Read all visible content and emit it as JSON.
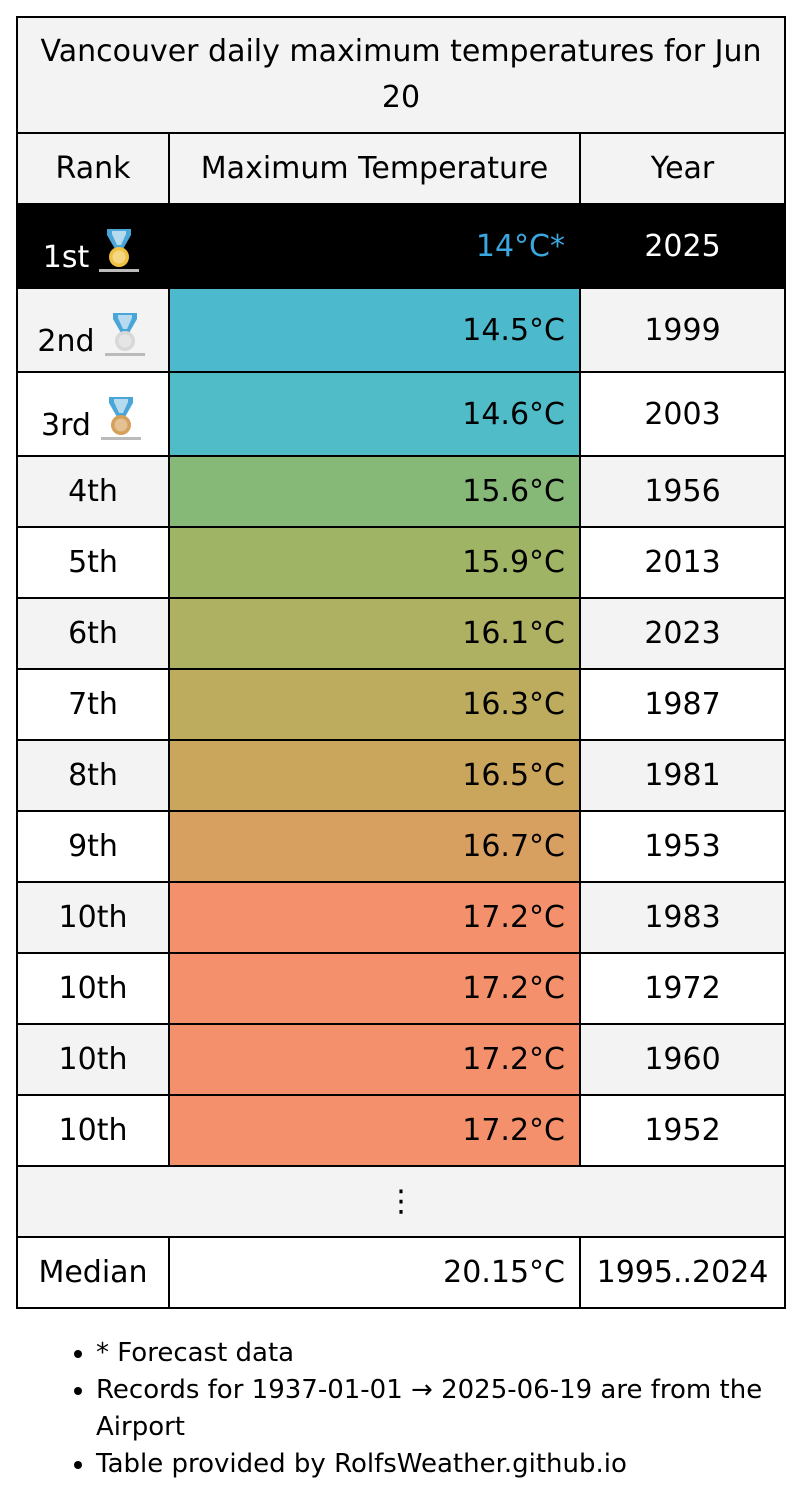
{
  "title": "Vancouver daily maximum temperatures for Jun 20",
  "columns": {
    "rank": "Rank",
    "temp": "Maximum Temperature",
    "year": "Year"
  },
  "rows": [
    {
      "rank": "1st",
      "temp": "14°C*",
      "year": "2025",
      "medal": "gold-medal-icon",
      "bg": "#000000",
      "color": "#3ba7e0"
    },
    {
      "rank": "2nd",
      "temp": "14.5°C",
      "year": "1999",
      "medal": "silver-medal-icon",
      "bg": "#4cbacc"
    },
    {
      "rank": "3rd",
      "temp": "14.6°C",
      "year": "2003",
      "medal": "bronze-medal-icon",
      "bg": "#4fbcc8"
    },
    {
      "rank": "4th",
      "temp": "15.6°C",
      "year": "1956",
      "bg": "#86b978"
    },
    {
      "rank": "5th",
      "temp": "15.9°C",
      "year": "2013",
      "bg": "#a0b466"
    },
    {
      "rank": "6th",
      "temp": "16.1°C",
      "year": "2023",
      "bg": "#aeb162"
    },
    {
      "rank": "7th",
      "temp": "16.3°C",
      "year": "1987",
      "bg": "#bdab5e"
    },
    {
      "rank": "8th",
      "temp": "16.5°C",
      "year": "1981",
      "bg": "#caa55c"
    },
    {
      "rank": "9th",
      "temp": "16.7°C",
      "year": "1953",
      "bg": "#d7a060"
    },
    {
      "rank": "10th",
      "temp": "17.2°C",
      "year": "1983",
      "bg": "#f4916c"
    },
    {
      "rank": "10th",
      "temp": "17.2°C",
      "year": "1972",
      "bg": "#f4916c"
    },
    {
      "rank": "10th",
      "temp": "17.2°C",
      "year": "1960",
      "bg": "#f4916c"
    },
    {
      "rank": "10th",
      "temp": "17.2°C",
      "year": "1952",
      "bg": "#f4916c"
    }
  ],
  "ellipsis": "⋮",
  "median": {
    "label": "Median",
    "temp": "20.15°C",
    "range": "1995..2024"
  },
  "notes": [
    "* Forecast data",
    "Records for 1937-01-01 → 2025-06-19 are from the Airport",
    "Table provided by RolfsWeather.github.io"
  ],
  "colors": {
    "gold": "#f0c040",
    "silver": "#d8d8d8",
    "bronze": "#d4a05a",
    "ribbon": "#4aa6d8",
    "alt_row": "#f3f3f3"
  }
}
